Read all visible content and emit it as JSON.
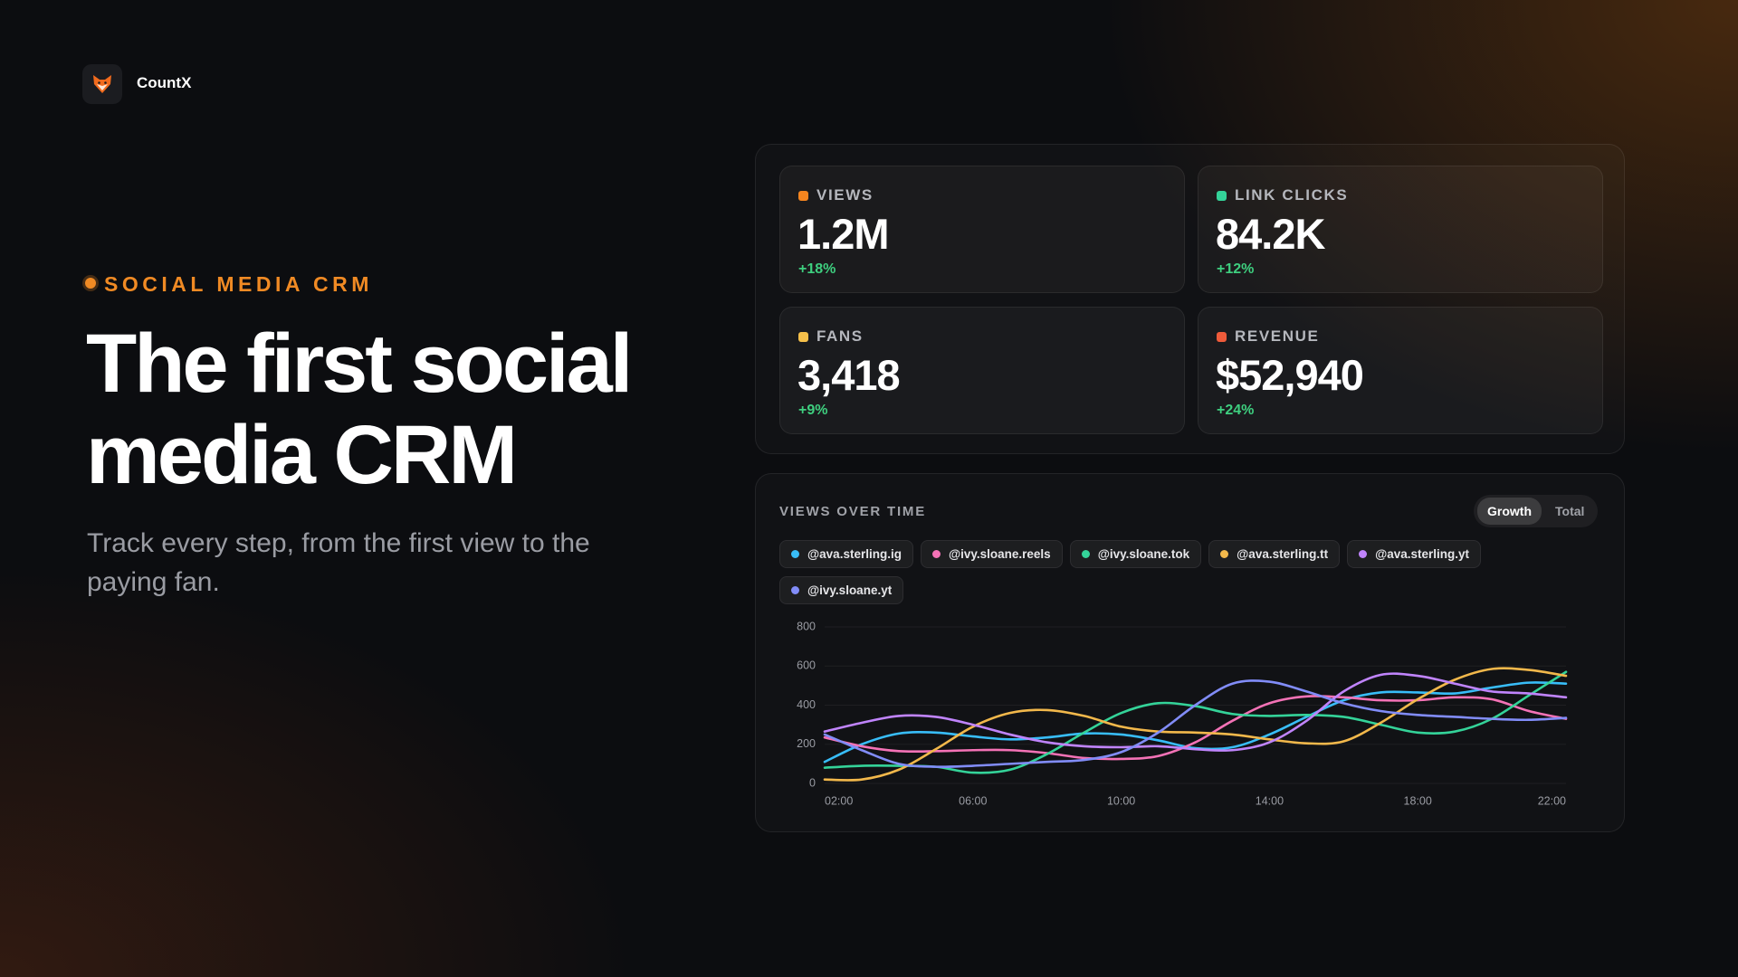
{
  "brand": {
    "name": "CountX"
  },
  "hero": {
    "eyebrow": "SOCIAL MEDIA CRM",
    "title": "The first social media CRM",
    "subtitle": "Track every step, from the first view to the paying fan."
  },
  "stats": [
    {
      "label": "VIEWS",
      "value": "1.2M",
      "change": "+18%",
      "color": "#f5851f"
    },
    {
      "label": "LINK CLICKS",
      "value": "84.2K",
      "change": "+12%",
      "color": "#34d399"
    },
    {
      "label": "FANS",
      "value": "3,418",
      "change": "+9%",
      "color": "#f5c04a"
    },
    {
      "label": "REVENUE",
      "value": "$52,940",
      "change": "+24%",
      "color": "#ef5b3a"
    }
  ],
  "toggle": {
    "options": [
      "Growth",
      "Total"
    ],
    "selected": 0
  },
  "chart_data": {
    "type": "line",
    "title": "VIEWS OVER TIME",
    "x": [
      2,
      3,
      4,
      5,
      6,
      7,
      8,
      9,
      10,
      11,
      12,
      13,
      14,
      15,
      16,
      17,
      18,
      19,
      20,
      21,
      22
    ],
    "xlim": [
      2,
      22
    ],
    "xticks": [
      {
        "value": 2,
        "label": "02:00"
      },
      {
        "value": 6,
        "label": "06:00"
      },
      {
        "value": 10,
        "label": "10:00"
      },
      {
        "value": 14,
        "label": "14:00"
      },
      {
        "value": 18,
        "label": "18:00"
      },
      {
        "value": 22,
        "label": "22:00"
      }
    ],
    "ylim": [
      0,
      800
    ],
    "yticks": [
      0,
      200,
      400,
      600,
      800
    ],
    "grid": true,
    "series": [
      {
        "name": "@ava.sterling.ig",
        "color": "#38bdf8",
        "values": [
          110,
          200,
          255,
          260,
          240,
          225,
          235,
          255,
          250,
          220,
          180,
          185,
          250,
          340,
          425,
          465,
          465,
          460,
          490,
          515,
          510
        ]
      },
      {
        "name": "@ivy.sloane.reels",
        "color": "#f472b6",
        "values": [
          235,
          190,
          165,
          165,
          170,
          170,
          155,
          130,
          125,
          140,
          210,
          320,
          410,
          445,
          440,
          425,
          425,
          440,
          430,
          370,
          330
        ]
      },
      {
        "name": "@ivy.sloane.tok",
        "color": "#34d399",
        "values": [
          80,
          90,
          90,
          85,
          55,
          70,
          150,
          260,
          360,
          410,
          395,
          355,
          345,
          350,
          340,
          300,
          260,
          265,
          330,
          450,
          570
        ]
      },
      {
        "name": "@ava.sterling.tt",
        "color": "#f2b84b",
        "values": [
          20,
          20,
          70,
          175,
          290,
          360,
          375,
          345,
          290,
          265,
          260,
          250,
          225,
          205,
          215,
          310,
          430,
          530,
          585,
          580,
          550
        ]
      },
      {
        "name": "@ava.sterling.yt",
        "color": "#c084fc",
        "values": [
          265,
          310,
          345,
          340,
          300,
          250,
          210,
          190,
          185,
          190,
          175,
          170,
          210,
          320,
          470,
          555,
          550,
          510,
          470,
          460,
          440
        ]
      },
      {
        "name": "@ivy.sloane.yt",
        "color": "#818cf8",
        "values": [
          250,
          170,
          100,
          85,
          90,
          100,
          110,
          120,
          160,
          260,
          400,
          510,
          520,
          470,
          410,
          370,
          350,
          340,
          330,
          325,
          335
        ]
      }
    ]
  }
}
